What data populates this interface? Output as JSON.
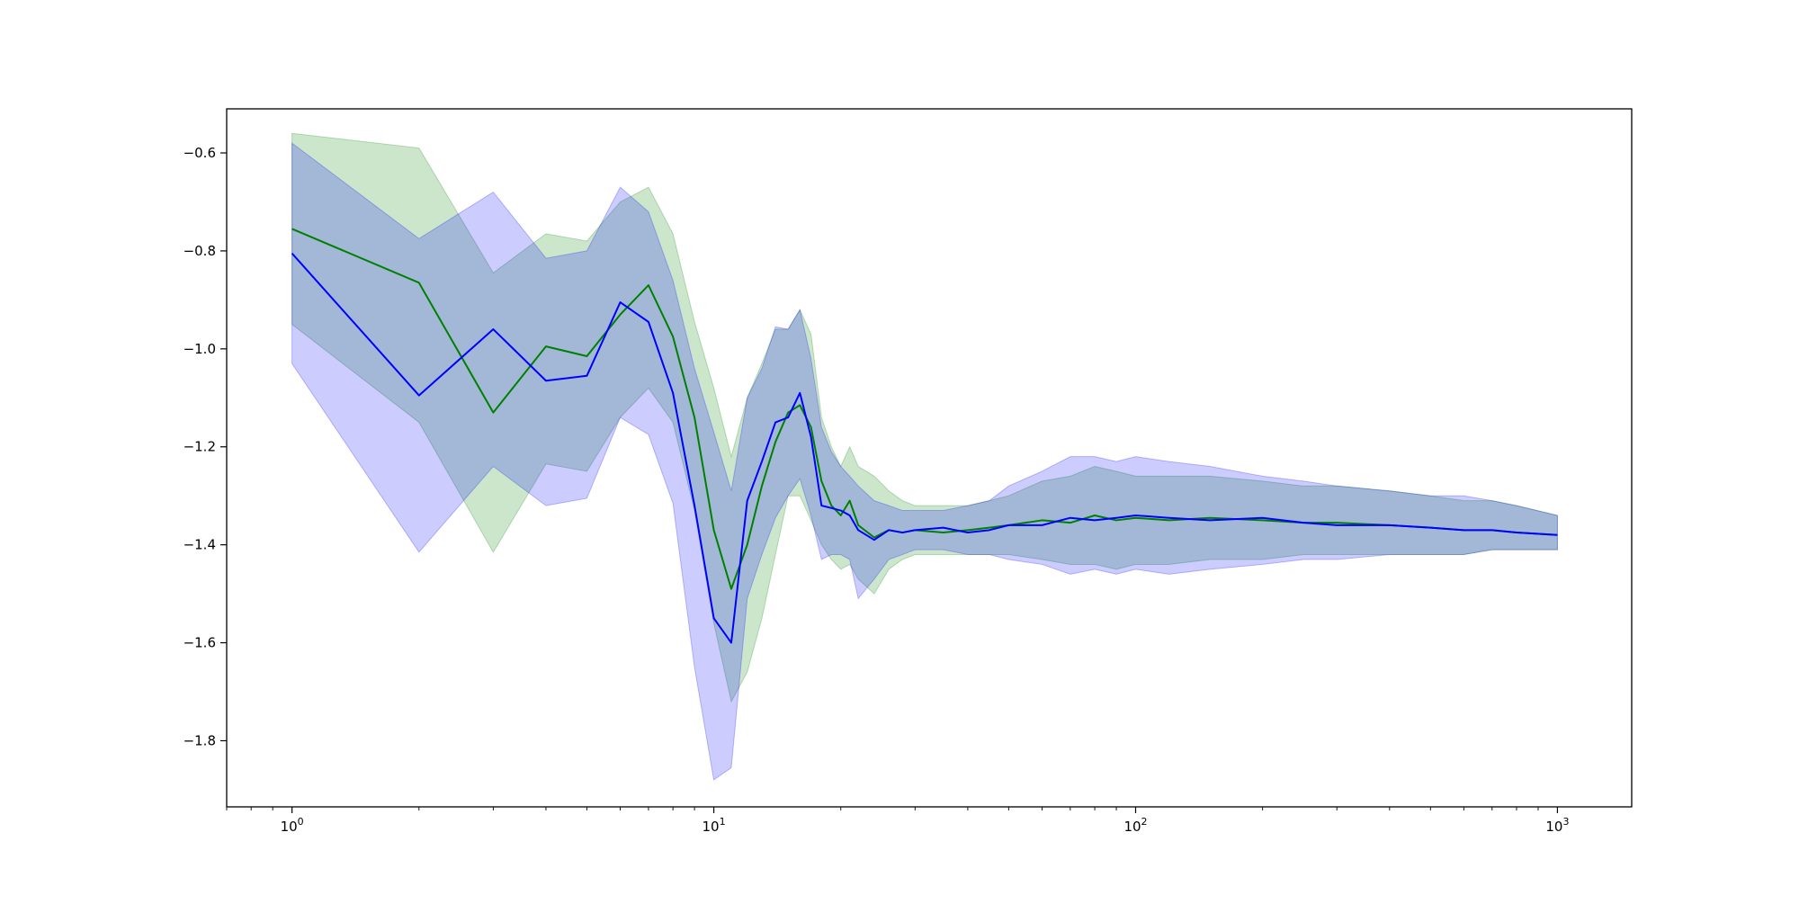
{
  "chart_data": {
    "type": "line",
    "title": "",
    "xlabel": "",
    "ylabel": "",
    "xscale": "log",
    "xlim": [
      0.7,
      1500
    ],
    "ylim": [
      -1.935,
      -0.51
    ],
    "grid": false,
    "legend": "none",
    "x_tick_labels": [
      {
        "base": "10",
        "exp": "0",
        "value": 1
      },
      {
        "base": "10",
        "exp": "1",
        "value": 10
      },
      {
        "base": "10",
        "exp": "2",
        "value": 100
      },
      {
        "base": "10",
        "exp": "3",
        "value": 1000
      }
    ],
    "y_tick_labels": [
      {
        "label": "−0.6",
        "value": -0.6
      },
      {
        "label": "−0.8",
        "value": -0.8
      },
      {
        "label": "−1.0",
        "value": -1.0
      },
      {
        "label": "−1.2",
        "value": -1.2
      },
      {
        "label": "−1.4",
        "value": -1.4
      },
      {
        "label": "−1.6",
        "value": -1.6
      },
      {
        "label": "−1.8",
        "value": -1.8
      }
    ],
    "series": [
      {
        "color": "#008000",
        "band_color": "#008000",
        "band_opacity": 0.2,
        "x": [
          1,
          2,
          3,
          4,
          5,
          6,
          7,
          8,
          9,
          10,
          11,
          12,
          13,
          14,
          15,
          16,
          17,
          18,
          19,
          20,
          21,
          22,
          24,
          26,
          28,
          30,
          35,
          40,
          45,
          50,
          60,
          70,
          80,
          90,
          100,
          120,
          150,
          200,
          250,
          300,
          400,
          500,
          600,
          700,
          800,
          1000
        ],
        "y": [
          -0.755,
          -0.865,
          -1.13,
          -0.995,
          -1.015,
          -0.93,
          -0.87,
          -0.975,
          -1.14,
          -1.37,
          -1.49,
          -1.4,
          -1.28,
          -1.19,
          -1.13,
          -1.115,
          -1.16,
          -1.27,
          -1.32,
          -1.34,
          -1.31,
          -1.36,
          -1.385,
          -1.37,
          -1.375,
          -1.37,
          -1.375,
          -1.37,
          -1.365,
          -1.36,
          -1.35,
          -1.355,
          -1.34,
          -1.35,
          -1.345,
          -1.35,
          -1.345,
          -1.35,
          -1.355,
          -1.355,
          -1.36,
          -1.365,
          -1.37,
          -1.37,
          -1.375,
          -1.38
        ],
        "upper": [
          -0.56,
          -0.59,
          -0.845,
          -0.765,
          -0.78,
          -0.7,
          -0.67,
          -0.765,
          -0.945,
          -1.08,
          -1.22,
          -1.1,
          -1.03,
          -0.96,
          -0.96,
          -0.92,
          -0.97,
          -1.14,
          -1.2,
          -1.24,
          -1.2,
          -1.24,
          -1.26,
          -1.29,
          -1.31,
          -1.32,
          -1.32,
          -1.32,
          -1.31,
          -1.3,
          -1.27,
          -1.26,
          -1.24,
          -1.25,
          -1.26,
          -1.26,
          -1.26,
          -1.27,
          -1.28,
          -1.28,
          -1.29,
          -1.3,
          -1.31,
          -1.31,
          -1.32,
          -1.34
        ],
        "lower": [
          -0.95,
          -1.15,
          -1.415,
          -1.235,
          -1.25,
          -1.14,
          -1.08,
          -1.15,
          -1.33,
          -1.56,
          -1.72,
          -1.66,
          -1.55,
          -1.42,
          -1.3,
          -1.3,
          -1.35,
          -1.4,
          -1.43,
          -1.45,
          -1.44,
          -1.47,
          -1.5,
          -1.45,
          -1.43,
          -1.42,
          -1.42,
          -1.42,
          -1.42,
          -1.42,
          -1.43,
          -1.44,
          -1.44,
          -1.45,
          -1.44,
          -1.44,
          -1.43,
          -1.43,
          -1.42,
          -1.42,
          -1.42,
          -1.42,
          -1.42,
          -1.41,
          -1.41,
          -1.41
        ]
      },
      {
        "color": "#0000ff",
        "band_color": "#0000ff",
        "band_opacity": 0.2,
        "x": [
          1,
          2,
          3,
          4,
          5,
          6,
          7,
          8,
          9,
          10,
          11,
          12,
          13,
          14,
          15,
          16,
          17,
          18,
          19,
          20,
          21,
          22,
          24,
          26,
          28,
          30,
          35,
          40,
          45,
          50,
          60,
          70,
          80,
          90,
          100,
          120,
          150,
          200,
          250,
          300,
          400,
          500,
          600,
          700,
          800,
          1000
        ],
        "y": [
          -0.805,
          -1.095,
          -0.96,
          -1.065,
          -1.055,
          -0.905,
          -0.945,
          -1.09,
          -1.32,
          -1.55,
          -1.6,
          -1.31,
          -1.23,
          -1.15,
          -1.14,
          -1.09,
          -1.18,
          -1.32,
          -1.325,
          -1.33,
          -1.34,
          -1.37,
          -1.39,
          -1.37,
          -1.375,
          -1.37,
          -1.365,
          -1.375,
          -1.37,
          -1.36,
          -1.36,
          -1.345,
          -1.35,
          -1.345,
          -1.34,
          -1.345,
          -1.35,
          -1.345,
          -1.355,
          -1.36,
          -1.36,
          -1.365,
          -1.37,
          -1.37,
          -1.375,
          -1.38
        ],
        "upper": [
          -0.58,
          -0.775,
          -0.68,
          -0.815,
          -0.8,
          -0.67,
          -0.72,
          -0.86,
          -1.04,
          -1.17,
          -1.29,
          -1.1,
          -1.04,
          -0.955,
          -0.96,
          -0.92,
          -1.02,
          -1.16,
          -1.21,
          -1.24,
          -1.26,
          -1.28,
          -1.31,
          -1.32,
          -1.33,
          -1.33,
          -1.33,
          -1.32,
          -1.31,
          -1.28,
          -1.25,
          -1.22,
          -1.22,
          -1.23,
          -1.22,
          -1.23,
          -1.24,
          -1.26,
          -1.27,
          -1.28,
          -1.29,
          -1.3,
          -1.3,
          -1.31,
          -1.32,
          -1.34
        ],
        "lower": [
          -1.03,
          -1.415,
          -1.24,
          -1.32,
          -1.305,
          -1.14,
          -1.175,
          -1.315,
          -1.65,
          -1.88,
          -1.855,
          -1.51,
          -1.42,
          -1.345,
          -1.3,
          -1.265,
          -1.34,
          -1.43,
          -1.42,
          -1.42,
          -1.43,
          -1.51,
          -1.47,
          -1.43,
          -1.42,
          -1.41,
          -1.41,
          -1.42,
          -1.42,
          -1.43,
          -1.44,
          -1.46,
          -1.45,
          -1.46,
          -1.45,
          -1.46,
          -1.45,
          -1.44,
          -1.43,
          -1.43,
          -1.42,
          -1.42,
          -1.42,
          -1.41,
          -1.41,
          -1.41
        ]
      }
    ]
  }
}
